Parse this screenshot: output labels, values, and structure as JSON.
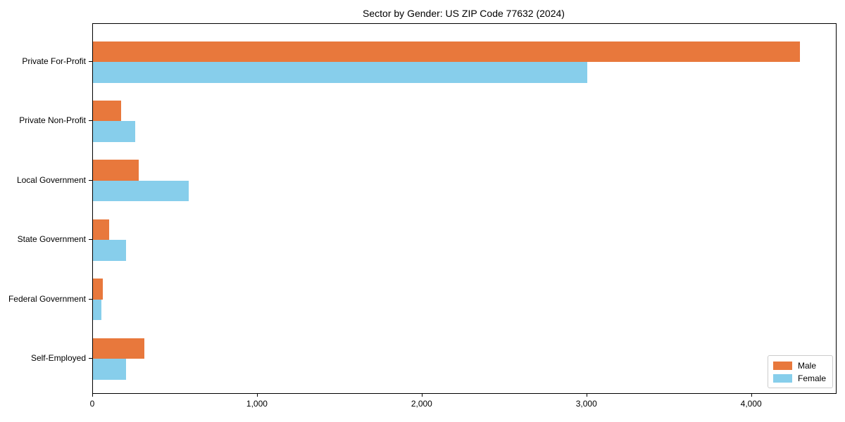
{
  "chart_data": {
    "type": "bar",
    "orientation": "horizontal",
    "title": "Sector by Gender: US ZIP Code 77632 (2024)",
    "categories": [
      "Private For-Profit",
      "Private Non-Profit",
      "Local Government",
      "State Government",
      "Federal Government",
      "Self-Employed"
    ],
    "series": [
      {
        "name": "Male",
        "color": "#e8783c",
        "values": [
          4290,
          170,
          280,
          97,
          60,
          310
        ]
      },
      {
        "name": "Female",
        "color": "#87ceeb",
        "values": [
          3000,
          255,
          580,
          200,
          53,
          200
        ]
      }
    ],
    "xlabel": "",
    "ylabel": "",
    "xlim": [
      0,
      4510
    ],
    "xticks": [
      0,
      1000,
      2000,
      3000,
      4000
    ],
    "xtick_labels": [
      "0",
      "1,000",
      "2,000",
      "3,000",
      "4,000"
    ],
    "grid": false,
    "legend_position": "lower right",
    "legend_entries": [
      {
        "label": "Male",
        "color": "#e8783c"
      },
      {
        "label": "Female",
        "color": "#87ceeb"
      }
    ]
  }
}
